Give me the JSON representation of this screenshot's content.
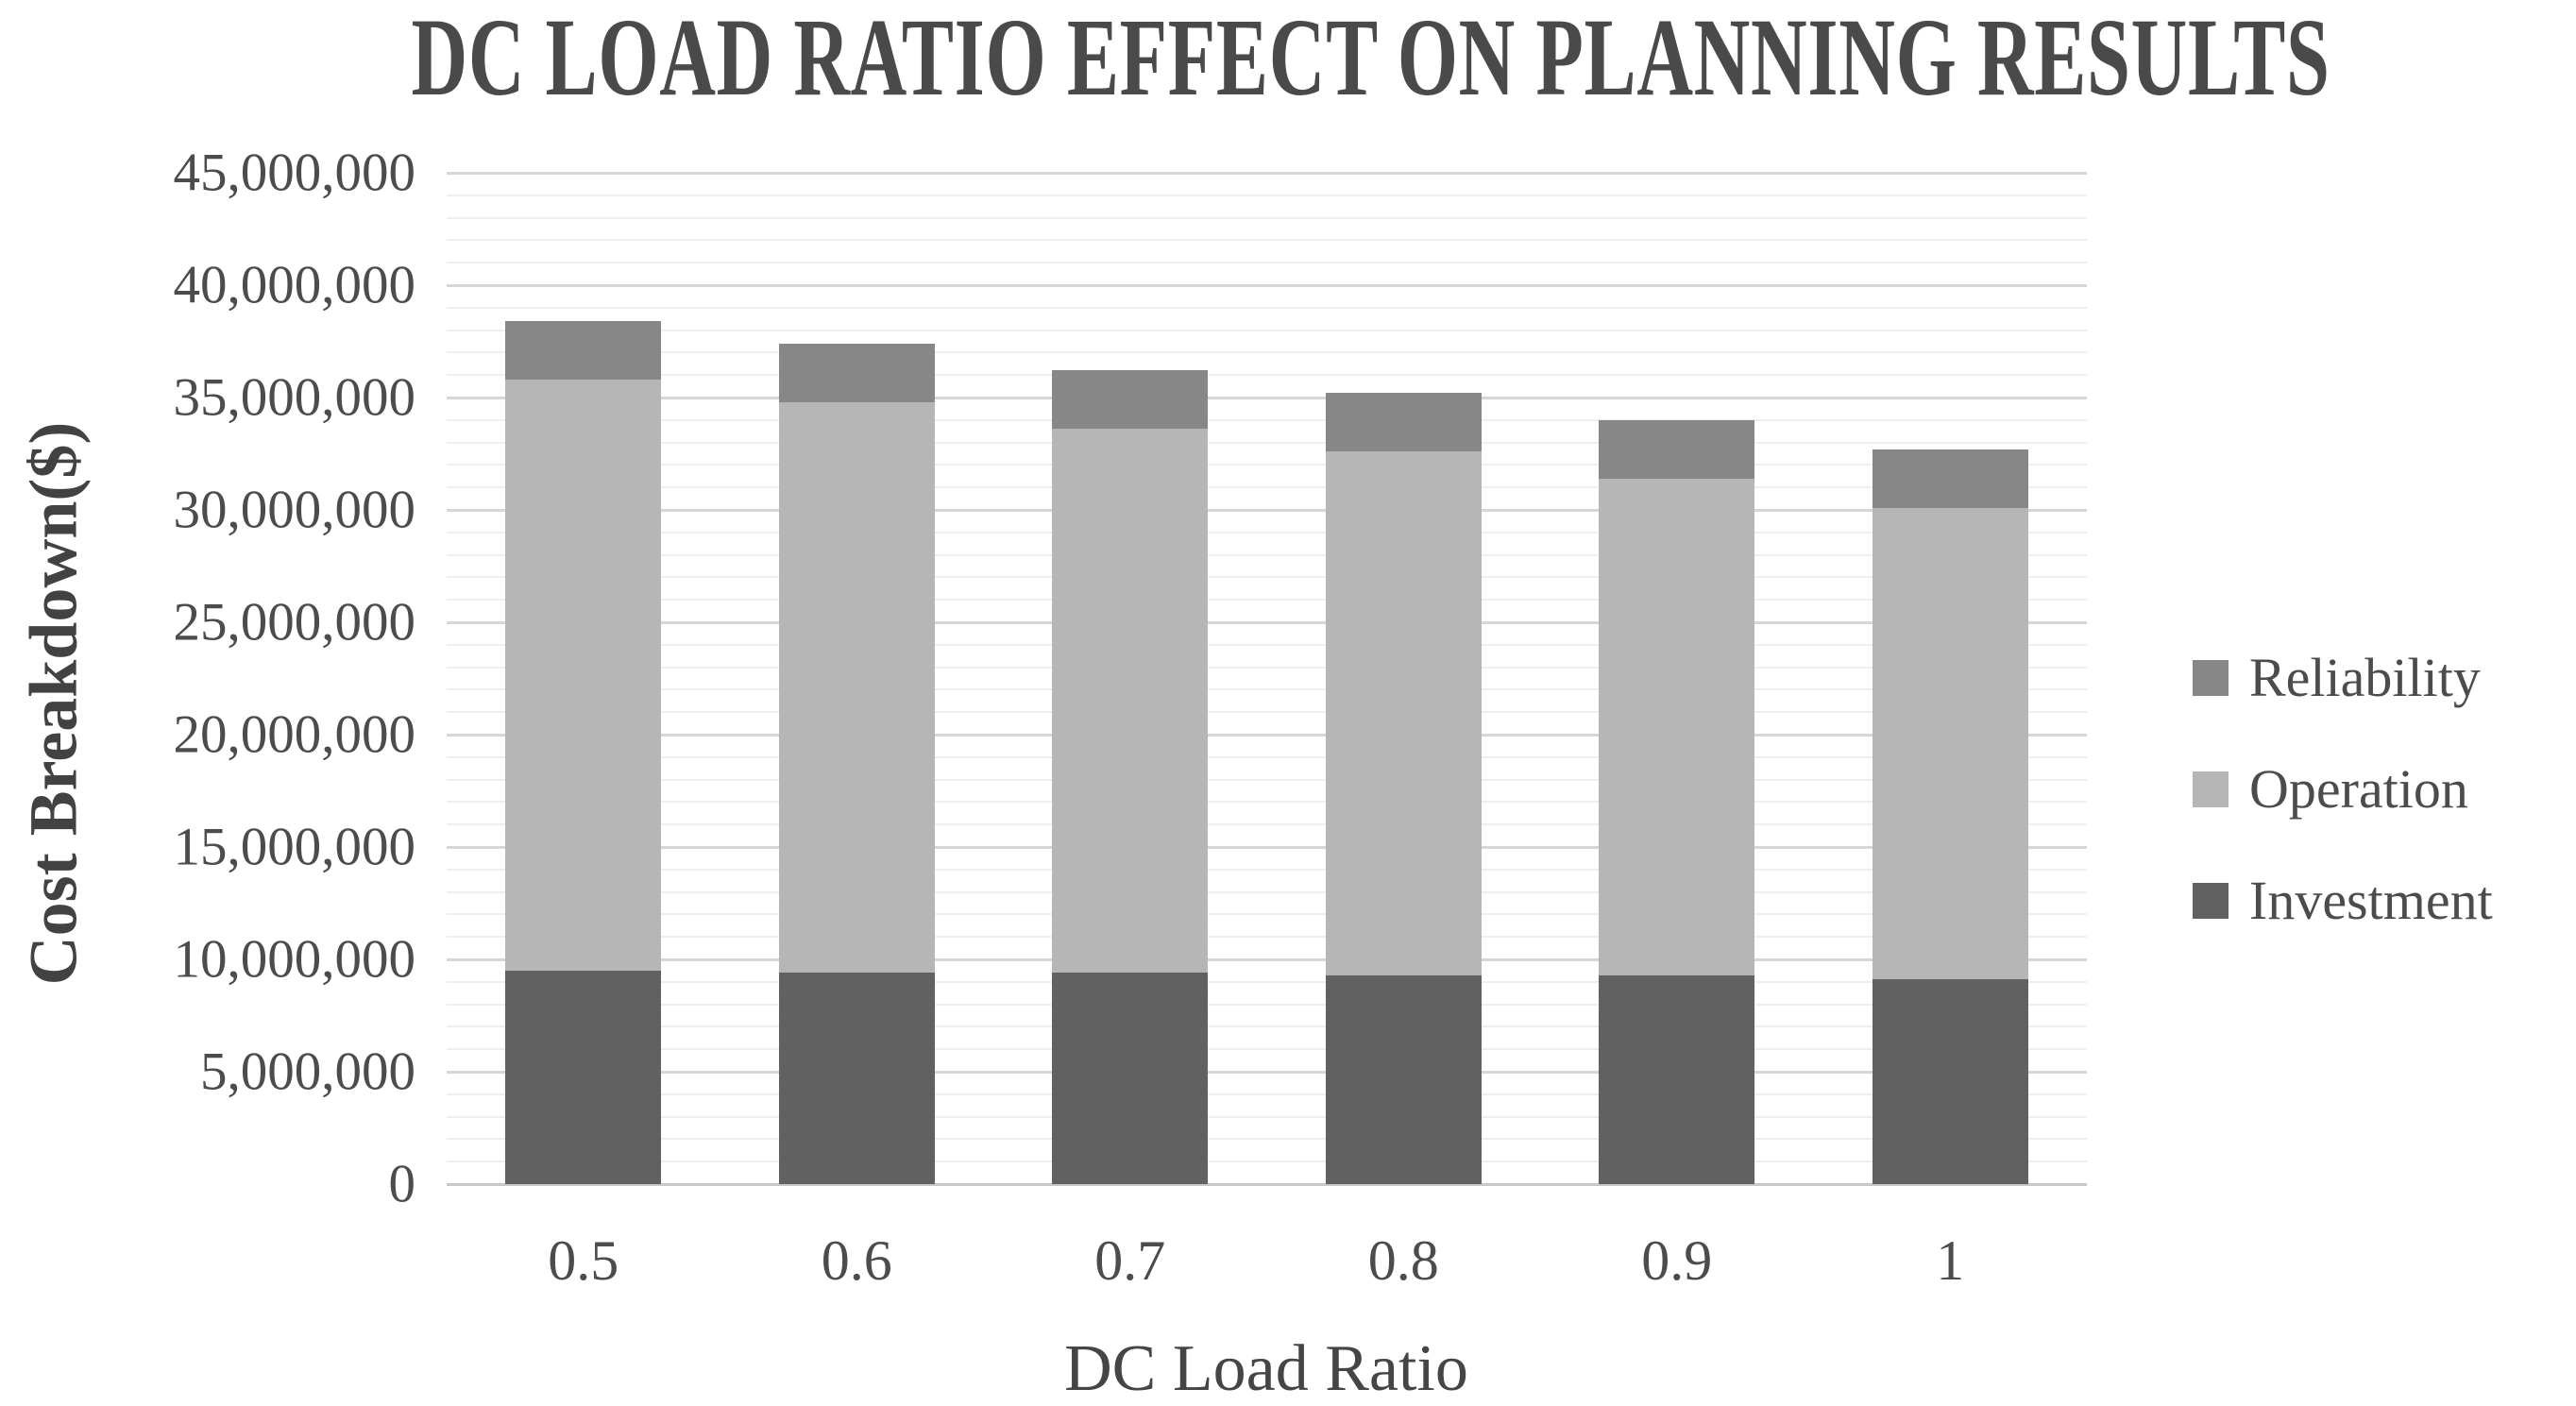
{
  "chart_data": {
    "type": "bar",
    "stacked": true,
    "title": "DC LOAD RATIO EFFECT ON PLANNING RESULTS",
    "xlabel": "DC Load Ratio",
    "ylabel": "Cost Breakdown($)",
    "categories": [
      "0.5",
      "0.6",
      "0.7",
      "0.8",
      "0.9",
      "1"
    ],
    "series": [
      {
        "name": "Investment",
        "color": "#616161",
        "values": [
          9500000,
          9400000,
          9400000,
          9300000,
          9300000,
          9100000
        ]
      },
      {
        "name": "Operation",
        "color": "#b6b6b6",
        "values": [
          26300000,
          25400000,
          24200000,
          23300000,
          22100000,
          21000000
        ]
      },
      {
        "name": "Reliability",
        "color": "#878787",
        "values": [
          2600000,
          2600000,
          2600000,
          2600000,
          2600000,
          2600000
        ]
      }
    ],
    "stack_totals": [
      38400000,
      37400000,
      36200000,
      35200000,
      34000000,
      32700000
    ],
    "ylim": [
      0,
      45000000
    ],
    "ytick_step": 5000000,
    "minor_gridline_step": 1000000,
    "grid": "horizontal major + minor, light gray",
    "legend_position": "right",
    "legend_entries": [
      "Reliability",
      "Operation",
      "Investment"
    ]
  },
  "colors": {
    "background": "#ffffff",
    "text": "#4c4c4c",
    "major_gridline": "#d6d6d6",
    "minor_gridline": "#efefef",
    "baseline": "#c8c8c8"
  }
}
